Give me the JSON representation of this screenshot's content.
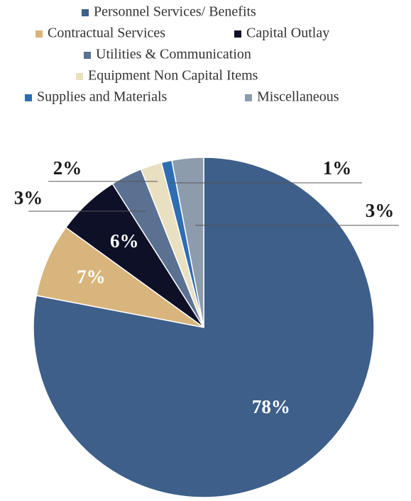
{
  "chart_data": {
    "type": "pie",
    "categories": [
      "Personnel Services/ Benefits",
      "Contractual Services",
      "Capital Outlay",
      "Utilities & Communication",
      "Equipment   Non Capital Items",
      "Supplies and Materials",
      "Miscellaneous"
    ],
    "values": [
      78,
      7,
      6,
      3,
      2,
      1,
      3
    ],
    "value_labels": [
      "78%",
      "7%",
      "6%",
      "3%",
      "2%",
      "1%",
      "3%"
    ],
    "colors": [
      "#3d5f8a",
      "#d8b57c",
      "#0e1028",
      "#5b7191",
      "#e9e0c2",
      "#2f6db3",
      "#8d9cad"
    ]
  }
}
